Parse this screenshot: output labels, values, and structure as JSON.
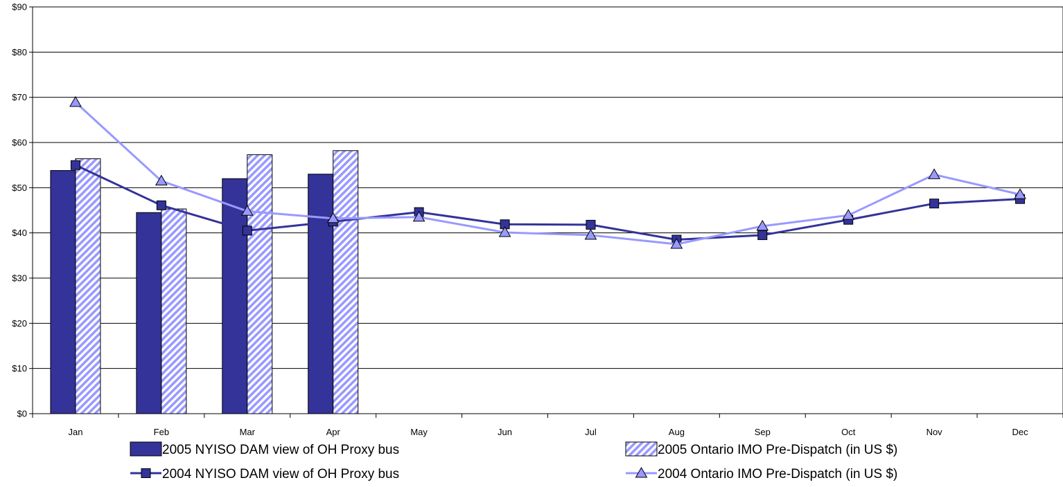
{
  "chart_data": {
    "type": "bar",
    "categories": [
      "Jan",
      "Feb",
      "Mar",
      "Apr",
      "May",
      "Jun",
      "Jul",
      "Aug",
      "Sep",
      "Oct",
      "Nov",
      "Dec"
    ],
    "ylim": [
      0,
      90
    ],
    "yticks": [
      "$0",
      "$10",
      "$20",
      "$30",
      "$40",
      "$50",
      "$60",
      "$70",
      "$80",
      "$90"
    ],
    "grid": true,
    "legend_position": "bottom",
    "series": [
      {
        "name": "2005 NYISO DAM view of OH Proxy bus",
        "kind": "bar",
        "color": "#333399",
        "values": [
          53.8,
          44.5,
          52.0,
          53.0,
          null,
          null,
          null,
          null,
          null,
          null,
          null,
          null
        ]
      },
      {
        "name": "2005 Ontario IMO Pre-Dispatch (in US $)",
        "kind": "bar",
        "color": "#9999ff",
        "pattern": "diagonal-hatch",
        "values": [
          56.4,
          45.3,
          57.3,
          58.2,
          null,
          null,
          null,
          null,
          null,
          null,
          null,
          null
        ]
      },
      {
        "name": "2004 NYISO DAM view of OH Proxy bus",
        "kind": "line",
        "marker": "square",
        "color": "#333399",
        "values": [
          55.0,
          46.1,
          40.5,
          42.5,
          44.6,
          41.9,
          41.8,
          38.5,
          39.5,
          42.9,
          46.5,
          47.5
        ]
      },
      {
        "name": "2004 Ontario IMO Pre-Dispatch (in US $)",
        "kind": "line",
        "marker": "triangle",
        "color": "#9999ff",
        "values": [
          68.9,
          51.5,
          44.8,
          43.2,
          43.5,
          40.1,
          39.5,
          37.5,
          41.5,
          43.9,
          52.9,
          48.5
        ]
      }
    ]
  }
}
